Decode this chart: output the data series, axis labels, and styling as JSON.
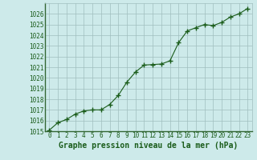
{
  "x": [
    0,
    1,
    2,
    3,
    4,
    5,
    6,
    7,
    8,
    9,
    10,
    11,
    12,
    13,
    14,
    15,
    16,
    17,
    18,
    19,
    20,
    21,
    22,
    23
  ],
  "y": [
    1015.1,
    1015.8,
    1016.1,
    1016.6,
    1016.9,
    1017.0,
    1017.0,
    1017.5,
    1018.35,
    1019.6,
    1020.55,
    1021.2,
    1021.25,
    1021.3,
    1021.6,
    1023.3,
    1024.4,
    1024.7,
    1025.0,
    1024.9,
    1025.2,
    1025.7,
    1026.0,
    1026.5
  ],
  "ylim": [
    1015,
    1027
  ],
  "xlim": [
    -0.5,
    23.5
  ],
  "yticks": [
    1015,
    1016,
    1017,
    1018,
    1019,
    1020,
    1021,
    1022,
    1023,
    1024,
    1025,
    1026
  ],
  "xticks": [
    0,
    1,
    2,
    3,
    4,
    5,
    6,
    7,
    8,
    9,
    10,
    11,
    12,
    13,
    14,
    15,
    16,
    17,
    18,
    19,
    20,
    21,
    22,
    23
  ],
  "xlabel": "Graphe pression niveau de la mer (hPa)",
  "line_color": "#1a5c1a",
  "marker": "+",
  "marker_size": 4,
  "bg_color": "#cdeaea",
  "grid_color": "#a0bebe",
  "text_color": "#1a5c1a",
  "tick_fontsize": 5.5,
  "xlabel_fontsize": 7.0
}
